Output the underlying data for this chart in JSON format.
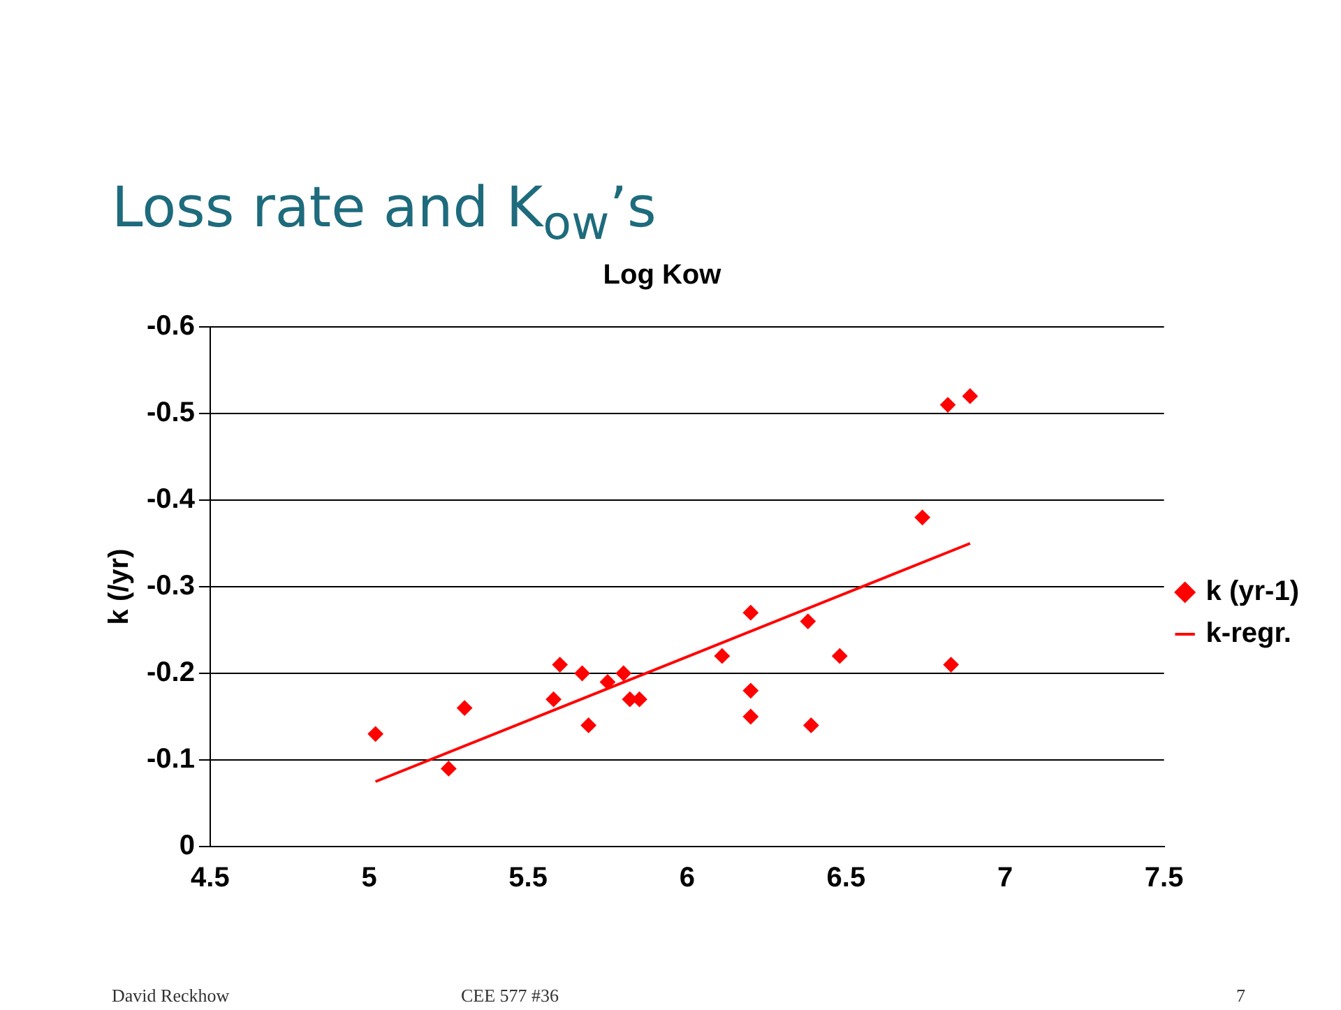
{
  "chart_data": {
    "type": "scatter",
    "title": "Loss rate and K$_{ow}$’s",
    "xlabel": "Log Kow",
    "ylabel": "k (/yr)",
    "annotations": [
      "David Reckhow",
      "CEE 577  #36",
      "7"
    ],
    "series": [
      {
        "name": "k (yr-1)",
        "color": "#ff0000",
        "marker": "diamond",
        "x": [
          5.02,
          5.25,
          5.3,
          5.58,
          5.6,
          5.67,
          5.69,
          5.75,
          5.8,
          5.82,
          5.85,
          6.11,
          6.2,
          6.2,
          6.2,
          6.38,
          6.39,
          6.48,
          6.74,
          6.82,
          6.83,
          6.89
        ],
        "values": [
          -0.13,
          -0.09,
          -0.16,
          -0.17,
          -0.21,
          -0.2,
          -0.14,
          -0.19,
          -0.2,
          -0.17,
          -0.17,
          -0.22,
          -0.27,
          -0.18,
          -0.15,
          -0.26,
          -0.14,
          -0.22,
          -0.38,
          -0.51,
          -0.21,
          -0.52
        ]
      },
      {
        "name": "k-regr.",
        "color": "#ff0000",
        "type": "line",
        "marker": "none",
        "x": [
          5.02,
          6.89
        ],
        "values": [
          -0.075,
          -0.35
        ]
      }
    ],
    "xlim": [
      4.5,
      7.5
    ],
    "xticks": [
      4.5,
      5,
      5.5,
      6,
      6.5,
      7,
      7.5
    ],
    "ylim": [
      0,
      -0.6
    ],
    "yticks": [
      0,
      -0.1,
      -0.2,
      -0.3,
      -0.4,
      -0.5,
      -0.6
    ],
    "grid": "y",
    "legend": "right"
  }
}
